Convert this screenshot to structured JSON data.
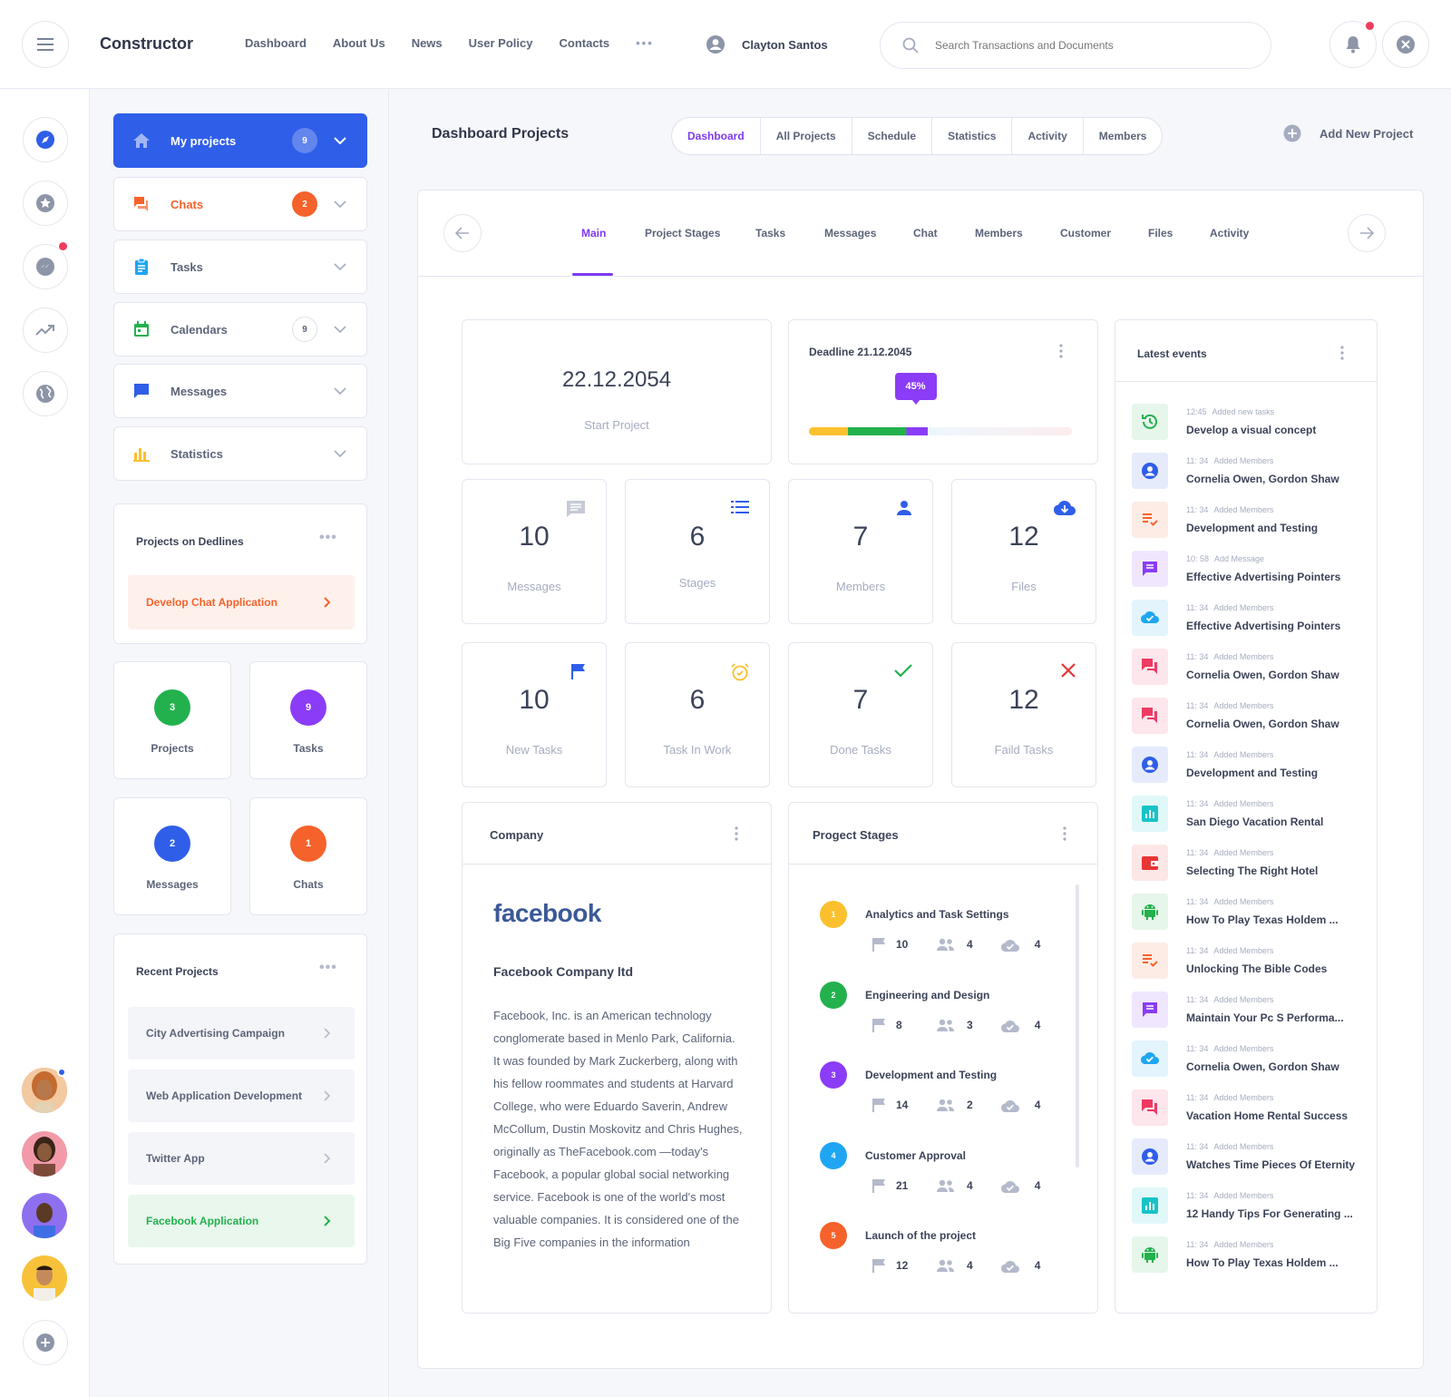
{
  "header": {
    "brand": "Constructor",
    "nav": [
      "Dashboard",
      "About Us",
      "News",
      "User Policy",
      "Contacts"
    ],
    "user_name": "Clayton Santos",
    "search_placeholder": "Search Transactions and Documents"
  },
  "sidebar": {
    "menu": [
      {
        "label": "My projects",
        "badge": "9",
        "icon": "home-icon"
      },
      {
        "label": "Chats",
        "badge": "2",
        "icon": "chat-icon"
      },
      {
        "label": "Tasks",
        "badge": "",
        "icon": "clipboard-icon"
      },
      {
        "label": "Calendars",
        "badge": "9",
        "icon": "calendar-icon"
      },
      {
        "label": "Messages",
        "badge": "",
        "icon": "message-icon"
      },
      {
        "label": "Statistics",
        "badge": "",
        "icon": "bar-chart-icon"
      }
    ],
    "deadlines": {
      "title": "Projects on Dedlines",
      "item": "Develop Chat Application"
    },
    "counters": [
      {
        "value": "3",
        "label": "Projects",
        "color": "#23b14d"
      },
      {
        "value": "9",
        "label": "Tasks",
        "color": "#8b3cf7"
      },
      {
        "value": "2",
        "label": "Messages",
        "color": "#2f5ee9"
      },
      {
        "value": "1",
        "label": "Chats",
        "color": "#f6622b"
      }
    ],
    "recent": {
      "title": "Recent Projects",
      "items": [
        "City Advertising Campaign",
        "Web Application Development",
        "Twitter App",
        "Facebook Application"
      ]
    }
  },
  "main": {
    "title": "Dashboard Projects",
    "tabs": [
      "Dashboard",
      "All Projects",
      "Schedule",
      "Statistics",
      "Activity",
      "Members"
    ],
    "add_new": "Add New Project",
    "subnav": [
      "Main",
      "Project Stages",
      "Tasks",
      "Messages",
      "Chat",
      "Members",
      "Customer",
      "Files",
      "Activity"
    ],
    "start": {
      "date": "22.12.2054",
      "label": "Start Project"
    },
    "deadline": {
      "title": "Deadline 21.12.2045",
      "progress_label": "45%",
      "progress": 0.45
    },
    "stats": [
      {
        "value": "10",
        "label": "Messages",
        "icon": "message-icon"
      },
      {
        "value": "6",
        "label": "Stages",
        "icon": "list-icon"
      },
      {
        "value": "7",
        "label": "Members",
        "icon": "person-icon"
      },
      {
        "value": "12",
        "label": "Files",
        "icon": "cloud-download-icon"
      },
      {
        "value": "10",
        "label": "New Tasks",
        "icon": "flag-icon"
      },
      {
        "value": "6",
        "label": "Task In Work",
        "icon": "alarm-icon"
      },
      {
        "value": "7",
        "label": "Done Tasks",
        "icon": "check-icon"
      },
      {
        "value": "12",
        "label": "Faild Tasks",
        "icon": "close-icon"
      }
    ],
    "company": {
      "title": "Company",
      "logo": "facebook",
      "name": "Facebook Company ltd",
      "description": "Facebook, Inc. is an American technology conglomerate based in Menlo Park, California. It was founded by Mark Zuckerberg, along with his fellow roommates and students at Harvard College, who were Eduardo Saverin, Andrew McCollum, Dustin Moskovitz and Chris Hughes, originally as TheFacebook.com —today's Facebook, a popular global social networking service. Facebook is one of the world's most valuable companies. It is considered one of the Big Five companies in the information"
    },
    "stages": {
      "title": "Progect Stages",
      "items": [
        {
          "num": "1",
          "name": "Analytics and Task Settings",
          "flags": "10",
          "people": "4",
          "clouds": "4",
          "color": "#fbc02d"
        },
        {
          "num": "2",
          "name": "Engineering and Design",
          "flags": "8",
          "people": "3",
          "clouds": "4",
          "color": "#23b14d"
        },
        {
          "num": "3",
          "name": "Development and Testing",
          "flags": "14",
          "people": "2",
          "clouds": "4",
          "color": "#8b3cf7"
        },
        {
          "num": "4",
          "name": "Customer Approval",
          "flags": "21",
          "people": "4",
          "clouds": "4",
          "color": "#1fa6f2"
        },
        {
          "num": "5",
          "name": "Launch of the project",
          "flags": "12",
          "people": "4",
          "clouds": "4",
          "color": "#f6622b"
        }
      ]
    },
    "events": {
      "title": "Latest events",
      "items": [
        {
          "time": "12:45",
          "action": "Added new tasks",
          "title": "Develop a visual concept",
          "icon": "history-icon",
          "color": "#23b14d",
          "bg": "#e6f6ea"
        },
        {
          "time": "11: 34",
          "action": "Added Members",
          "title": "Cornelia Owen, Gordon Shaw",
          "icon": "person-icon",
          "color": "#2f5ee9",
          "bg": "#e6ebfc"
        },
        {
          "time": "11: 34",
          "action": "Added Members",
          "title": "Development and Testing",
          "icon": "checklist-icon",
          "color": "#f6622b",
          "bg": "#fdece5"
        },
        {
          "time": "10: 58",
          "action": "Add Message",
          "title": "Effective Advertising Pointers",
          "icon": "message-icon",
          "color": "#8b3cf7",
          "bg": "#f0e7fe"
        },
        {
          "time": "11: 34",
          "action": "Added Members",
          "title": "Effective Advertising Pointers",
          "icon": "cloud-done-icon",
          "color": "#1fa6f2",
          "bg": "#e3f4fd"
        },
        {
          "time": "11: 34",
          "action": "Added Members",
          "title": "Cornelia Owen, Gordon Shaw",
          "icon": "chat-icon",
          "color": "#ee3b63",
          "bg": "#fde6ec"
        },
        {
          "time": "11: 34",
          "action": "Added Members",
          "title": "Cornelia Owen, Gordon Shaw",
          "icon": "chat-icon",
          "color": "#ee3b63",
          "bg": "#fde6ec"
        },
        {
          "time": "11: 34",
          "action": "Added Members",
          "title": "Development and Testing",
          "icon": "person-icon",
          "color": "#2f5ee9",
          "bg": "#e6ebfc"
        },
        {
          "time": "11: 34",
          "action": "Added Members",
          "title": "San Diego Vacation Rental",
          "icon": "chart-icon",
          "color": "#17c3c9",
          "bg": "#e1f8f9"
        },
        {
          "time": "11: 34",
          "action": "Added Members",
          "title": "Selecting The Right Hotel",
          "icon": "wallet-icon",
          "color": "#e83535",
          "bg": "#fde6e6"
        },
        {
          "time": "11: 34",
          "action": "Added Members",
          "title": "How To Play Texas Holdem ...",
          "icon": "android-icon",
          "color": "#23b14d",
          "bg": "#e6f6ea"
        },
        {
          "time": "11: 34",
          "action": "Added Members",
          "title": "Unlocking The Bible Codes",
          "icon": "checklist-icon",
          "color": "#f6622b",
          "bg": "#fdece5"
        },
        {
          "time": "11: 34",
          "action": "Added Members",
          "title": "Maintain Your Pc S Performa...",
          "icon": "message-icon",
          "color": "#8b3cf7",
          "bg": "#f0e7fe"
        },
        {
          "time": "11: 34",
          "action": "Added Members",
          "title": "Cornelia Owen, Gordon Shaw",
          "icon": "cloud-done-icon",
          "color": "#1fa6f2",
          "bg": "#e3f4fd"
        },
        {
          "time": "11: 34",
          "action": "Added Members",
          "title": "Vacation Home Rental Success",
          "icon": "chat-icon",
          "color": "#ee3b63",
          "bg": "#fde6ec"
        },
        {
          "time": "11: 34",
          "action": "Added Members",
          "title": "Watches Time Pieces Of Eternity",
          "icon": "person-icon",
          "color": "#2f5ee9",
          "bg": "#e6ebfc"
        },
        {
          "time": "11: 34",
          "action": "Added Members",
          "title": "12 Handy Tips For Generating ...",
          "icon": "chart-icon",
          "color": "#17c3c9",
          "bg": "#e1f8f9"
        },
        {
          "time": "11: 34",
          "action": "Added Members",
          "title": "How To Play Texas Holdem ...",
          "icon": "android-icon",
          "color": "#23b14d",
          "bg": "#e6f6ea"
        }
      ]
    }
  }
}
